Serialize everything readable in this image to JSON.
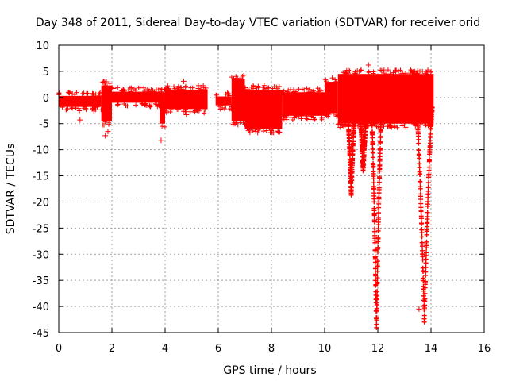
{
  "chart_data": {
    "type": "scatter",
    "title": "Day 348 of 2011, Sidereal Day-to-day VTEC variation (SDTVAR) for receiver orid",
    "xlabel": "GPS time / hours",
    "ylabel": "SDTVAR / TECUs",
    "xlim": [
      0,
      16
    ],
    "ylim": [
      -45,
      10
    ],
    "xticks": [
      0,
      2,
      4,
      6,
      8,
      10,
      12,
      14,
      16
    ],
    "yticks": [
      10,
      5,
      0,
      -5,
      -10,
      -15,
      -20,
      -25,
      -30,
      -35,
      -40,
      -45
    ],
    "grid": true,
    "marker": "+",
    "color": "#ff0000",
    "series": [
      {
        "name": "SDTVAR",
        "dense_bands": [
          {
            "x": [
              0.0,
              1.6
            ],
            "y": [
              -1.8,
              0.3
            ]
          },
          {
            "x": [
              1.6,
              2.0
            ],
            "y": [
              -4.5,
              2.3
            ]
          },
          {
            "x": [
              2.0,
              3.8
            ],
            "y": [
              -1.0,
              1.1
            ]
          },
          {
            "x": [
              3.8,
              4.0
            ],
            "y": [
              -5.0,
              1.0
            ]
          },
          {
            "x": [
              4.0,
              5.6
            ],
            "y": [
              -2.2,
              1.5
            ]
          },
          {
            "x": [
              5.9,
              6.5
            ],
            "y": [
              -1.5,
              0.2
            ]
          },
          {
            "x": [
              6.5,
              7.0
            ],
            "y": [
              -4.5,
              3.5
            ]
          },
          {
            "x": [
              7.0,
              8.4
            ],
            "y": [
              -6.0,
              1.5
            ]
          },
          {
            "x": [
              8.4,
              10.0
            ],
            "y": [
              -3.5,
              1.0
            ]
          },
          {
            "x": [
              10.0,
              10.5
            ],
            "y": [
              -3.0,
              3.0
            ]
          },
          {
            "x": [
              10.5,
              14.1
            ],
            "y": [
              -5.0,
              4.5
            ]
          }
        ],
        "spikes": [
          {
            "x": [
              10.85,
              11.15
            ],
            "y_min": -18.5
          },
          {
            "x": [
              11.3,
              11.6
            ],
            "y_min": -14.0
          },
          {
            "x": [
              11.75,
              12.15
            ],
            "y_min": -44.0
          },
          {
            "x": [
              13.45,
              14.05
            ],
            "y_min": -42.5
          }
        ],
        "outliers": [
          {
            "x": 0.8,
            "y": -4.3
          },
          {
            "x": 1.75,
            "y": -7.3
          },
          {
            "x": 1.85,
            "y": -6.5
          },
          {
            "x": 3.85,
            "y": -8.2
          },
          {
            "x": 4.7,
            "y": 3.1
          },
          {
            "x": 4.8,
            "y": -3.3
          },
          {
            "x": 11.65,
            "y": 6.2
          },
          {
            "x": 12.35,
            "y": 4.1
          },
          {
            "x": 11.0,
            "y": -13.5
          },
          {
            "x": 13.55,
            "y": -40.5
          }
        ]
      }
    ]
  }
}
